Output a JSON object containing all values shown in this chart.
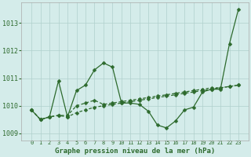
{
  "title": "Graphe pression niveau de la mer (hPa)",
  "x_values": [
    0,
    1,
    2,
    3,
    4,
    5,
    6,
    7,
    8,
    9,
    10,
    11,
    12,
    13,
    14,
    15,
    16,
    17,
    18,
    19,
    20,
    21,
    22,
    23
  ],
  "x_labels": [
    "0",
    "1",
    "2",
    "3",
    "4",
    "5",
    "6",
    "7",
    "8",
    "9",
    "10",
    "11",
    "12",
    "13",
    "14",
    "15",
    "16",
    "17",
    "18",
    "19",
    "20",
    "21",
    "22",
    "23"
  ],
  "line1": [
    1009.85,
    1009.5,
    1009.6,
    1010.9,
    1009.6,
    1010.55,
    1010.75,
    1011.3,
    1011.55,
    1011.4,
    1010.1,
    1010.1,
    1010.05,
    1009.8,
    1009.3,
    1009.2,
    1009.45,
    1009.85,
    1009.95,
    1010.5,
    1010.6,
    1010.6,
    1012.25,
    1013.5
  ],
  "line2": [
    1009.85,
    1009.5,
    1009.6,
    1009.65,
    1009.6,
    1009.75,
    1009.85,
    1009.95,
    1010.0,
    1010.05,
    1010.1,
    1010.15,
    1010.2,
    1010.25,
    1010.3,
    1010.35,
    1010.4,
    1010.45,
    1010.5,
    1010.55,
    1010.6,
    1010.65,
    1010.7,
    1010.75
  ],
  "line3": [
    1009.85,
    1009.5,
    1009.6,
    1009.65,
    1009.65,
    1010.0,
    1010.1,
    1010.2,
    1010.05,
    1010.1,
    1010.15,
    1010.2,
    1010.25,
    1010.3,
    1010.35,
    1010.4,
    1010.45,
    1010.5,
    1010.55,
    1010.6,
    1010.65,
    1010.65,
    1010.7,
    1010.75
  ],
  "ylim": [
    1008.75,
    1013.75
  ],
  "yticks": [
    1009,
    1010,
    1011,
    1012,
    1013
  ],
  "line_color": "#2d6a2d",
  "bg_color": "#d4ecea",
  "grid_color": "#b0d0cc",
  "title_color": "#2d6a2d"
}
